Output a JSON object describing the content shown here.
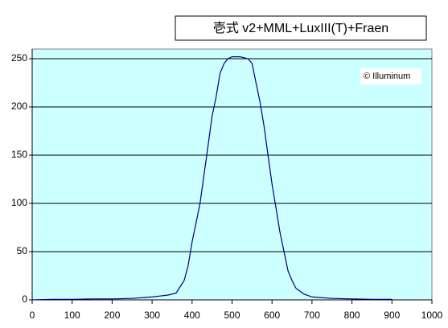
{
  "chart_data": {
    "type": "line",
    "title": "壱式 v2+MML+LuxIII(T)+Fraen",
    "annotation": "© Illuminum",
    "x": [
      0,
      50,
      100,
      150,
      200,
      250,
      300,
      320,
      340,
      360,
      380,
      390,
      400,
      410,
      420,
      430,
      440,
      450,
      460,
      470,
      480,
      490,
      500,
      520,
      540,
      550,
      560,
      570,
      580,
      590,
      600,
      610,
      620,
      630,
      640,
      650,
      660,
      680,
      700,
      750,
      800,
      850,
      900
    ],
    "values": [
      0,
      0.5,
      0.5,
      1,
      1,
      1.5,
      3,
      4,
      5,
      7,
      20,
      35,
      60,
      80,
      100,
      130,
      160,
      190,
      210,
      235,
      245,
      250,
      252,
      252,
      250,
      245,
      225,
      205,
      180,
      150,
      120,
      95,
      70,
      50,
      30,
      20,
      12,
      6,
      3,
      1.5,
      1,
      0.5,
      0.5
    ],
    "color": "#000080",
    "xlim": [
      0,
      1000
    ],
    "xticks": [
      0,
      100,
      200,
      300,
      400,
      500,
      600,
      700,
      800,
      900,
      1000
    ],
    "ylim": [
      0,
      260
    ],
    "yticks": [
      0,
      50,
      100,
      150,
      200,
      250
    ],
    "grid": true
  }
}
